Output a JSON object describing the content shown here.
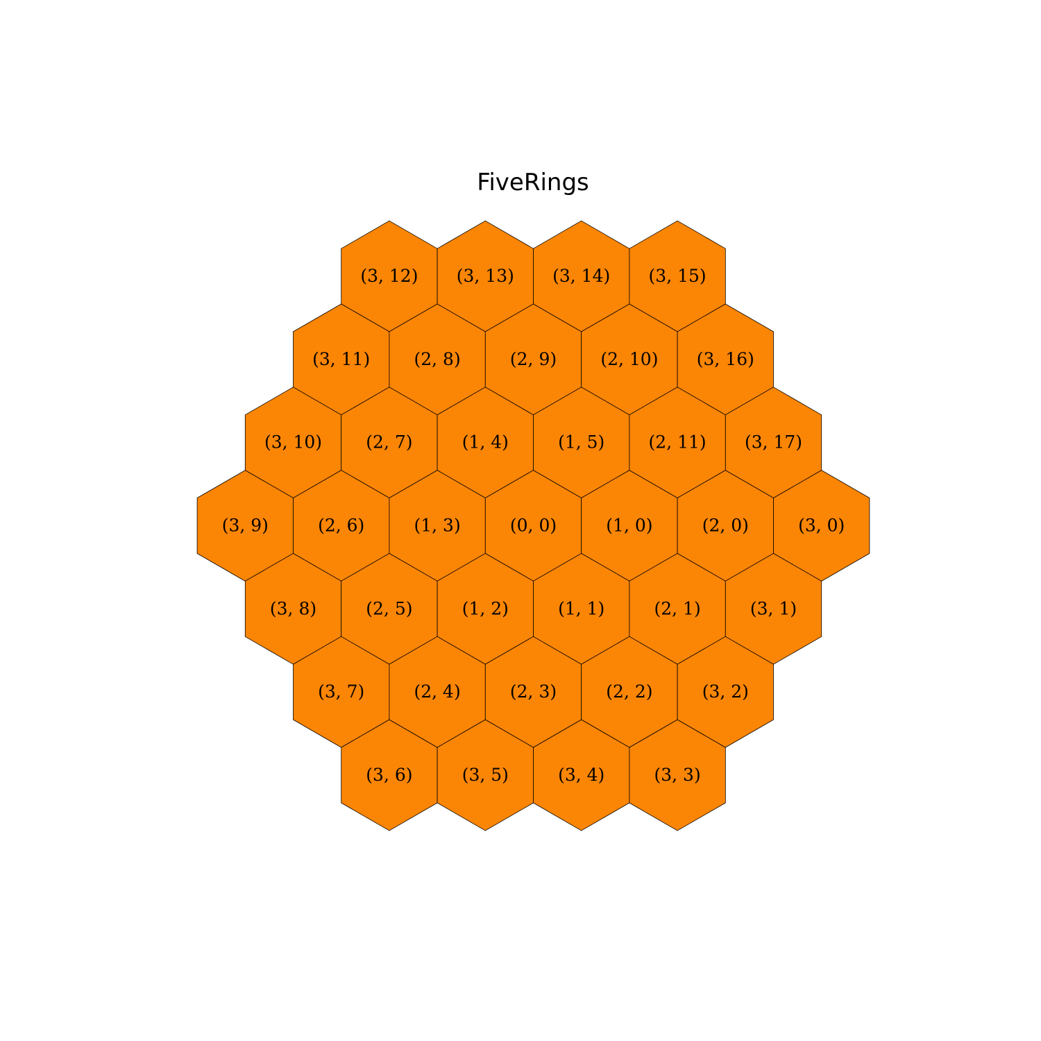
{
  "title": "FiveRings",
  "colors": {
    "cell_fill": "#fb8504",
    "cell_stroke": "#000000",
    "background": "#ffffff"
  },
  "grid": {
    "rows": [
      [
        "(3, 12)",
        "(3, 13)",
        "(3, 14)",
        "(3, 15)"
      ],
      [
        "(3, 11)",
        "(2, 8)",
        "(2, 9)",
        "(2, 10)",
        "(3, 16)"
      ],
      [
        "(3, 10)",
        "(2, 7)",
        "(1, 4)",
        "(1, 5)",
        "(2, 11)",
        "(3, 17)"
      ],
      [
        "(3, 9)",
        "(2, 6)",
        "(1, 3)",
        "(0, 0)",
        "(1, 0)",
        "(2, 0)",
        "(3, 0)"
      ],
      [
        "(3, 8)",
        "(2, 5)",
        "(1, 2)",
        "(1, 1)",
        "(2, 1)",
        "(3, 1)"
      ],
      [
        "(3, 7)",
        "(2, 4)",
        "(2, 3)",
        "(2, 2)",
        "(3, 2)"
      ],
      [
        "(3, 6)",
        "(3, 5)",
        "(3, 4)",
        "(3, 3)"
      ]
    ]
  }
}
